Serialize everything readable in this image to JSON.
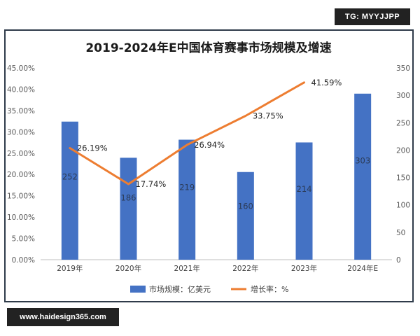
{
  "badges": {
    "top_right": "TG: MYYJJPP",
    "bottom_left": "www.haidesign365.com"
  },
  "chart_data": {
    "type": "bar",
    "title": "2019-2024年E中国体育赛事市场规模及增速",
    "categories": [
      "2019年",
      "2020年",
      "2021年",
      "2022年",
      "2023年",
      "2024年E"
    ],
    "series": [
      {
        "name": "市场规模：亿美元",
        "type": "bar",
        "axis": "right",
        "color": "#4472C4",
        "values": [
          252,
          186,
          219,
          160,
          214,
          303
        ],
        "labels": [
          "252",
          "186",
          "219",
          "160",
          "214",
          "303"
        ]
      },
      {
        "name": "增长率：%",
        "type": "line",
        "axis": "left",
        "color": "#ED7D31",
        "values": [
          26.19,
          17.74,
          26.94,
          33.75,
          41.59,
          null
        ],
        "labels": [
          "26.19%",
          "17.74%",
          "26.94%",
          "33.75%",
          "41.59%",
          ""
        ]
      }
    ],
    "left_axis": {
      "min": 0,
      "max": 45,
      "step": 5,
      "ticks": [
        "0.00%",
        "5.00%",
        "10.00%",
        "15.00%",
        "20.00%",
        "25.00%",
        "30.00%",
        "35.00%",
        "40.00%",
        "45.00%"
      ]
    },
    "right_axis": {
      "min": 0,
      "max": 350,
      "step": 50,
      "ticks": [
        "0",
        "50",
        "100",
        "150",
        "200",
        "250",
        "300",
        "350"
      ]
    },
    "legend_position": "bottom",
    "grid": false
  }
}
